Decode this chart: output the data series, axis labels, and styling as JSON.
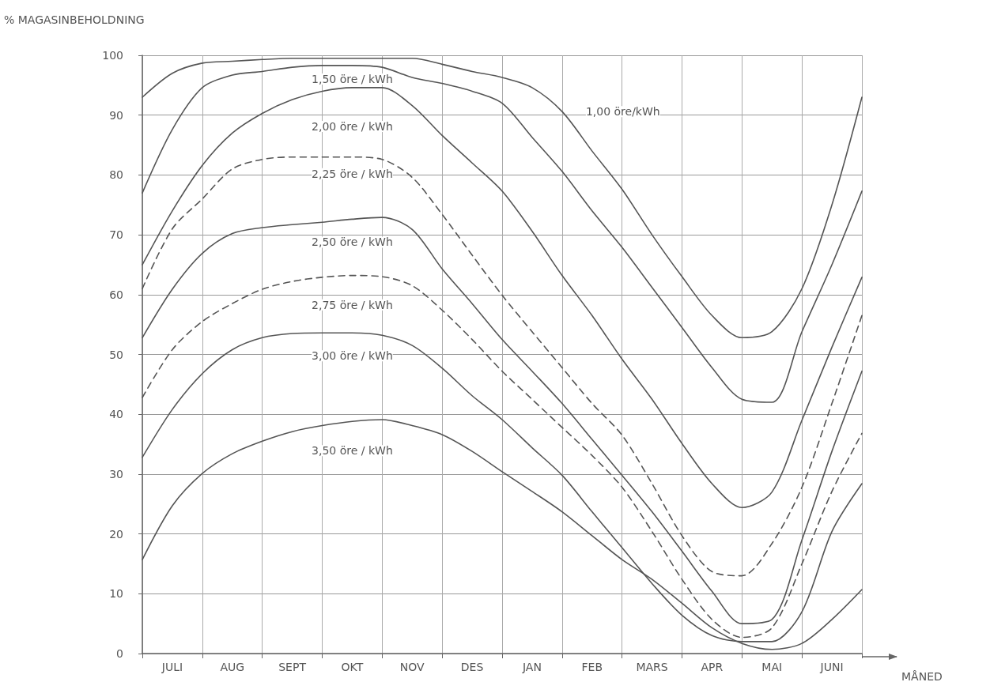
{
  "chart_data": {
    "type": "line",
    "ylabel": "% MAGASINBEHOLDNING",
    "xlabel": "MÅNED",
    "categories": [
      null,
      "JULI",
      null,
      "AUG",
      null,
      "SEPT",
      null,
      "OKT",
      null,
      "NOV",
      null,
      "DES",
      null,
      "JAN",
      null,
      "FEB",
      null,
      "MARS",
      null,
      "APR",
      null,
      "MAI",
      null,
      "JUNI",
      null
    ],
    "ylim": [
      0,
      100
    ],
    "yticks": [
      0,
      10,
      20,
      30,
      40,
      50,
      60,
      70,
      80,
      90,
      100
    ],
    "grid": true,
    "legend": false,
    "marker": "none",
    "series": [
      {
        "name": "1,00 öre/kWh",
        "color": "#555555",
        "line_style": "solid",
        "values": [
          93,
          97,
          98.7,
          99,
          99.3,
          99.5,
          99.5,
          99.5,
          99.5,
          99.5,
          98.5,
          97.3,
          96.3,
          94.6,
          90.6,
          84,
          77.6,
          70,
          63,
          56.5,
          52.8,
          53.8,
          61,
          75,
          93
        ]
      },
      {
        "name": "1,50 öre / kWh",
        "color": "#555555",
        "line_style": "solid",
        "values": [
          77,
          87.6,
          94.6,
          96.7,
          97.3,
          98,
          98.3,
          98.3,
          98,
          96.3,
          95.3,
          94,
          92,
          86.3,
          80.6,
          74,
          67.9,
          61.2,
          54.5,
          47.8,
          42.5,
          42,
          53.8,
          65,
          77.3
        ]
      },
      {
        "name": "2,00 öre / kWh",
        "color": "#555555",
        "line_style": "solid",
        "values": [
          65,
          74,
          81.6,
          87,
          90.3,
          92.6,
          94,
          94.6,
          94.6,
          91.6,
          86.6,
          82,
          77.3,
          70.6,
          63.2,
          56.5,
          49.2,
          42.5,
          35.1,
          28.4,
          24.4,
          27,
          39,
          51.2,
          62.9
        ]
      },
      {
        "name": "2,25 öre / kWh",
        "color": "#555555",
        "line_style": "dashed",
        "values": [
          61,
          71,
          76,
          81,
          82.6,
          83,
          83,
          83,
          82.6,
          79.6,
          73.4,
          66.6,
          59.9,
          53.8,
          47.8,
          41.8,
          36.5,
          28.4,
          19.7,
          13.7,
          13,
          18.4,
          27.8,
          41.8,
          56.5
        ]
      },
      {
        "name": "2,50 öre / kWh",
        "color": "#555555",
        "line_style": "solid",
        "values": [
          52.8,
          60.9,
          66.9,
          70.2,
          71.2,
          71.7,
          72.1,
          72.6,
          72.9,
          70.9,
          64.3,
          58.5,
          52.5,
          47.2,
          41.8,
          35.8,
          29.8,
          23.7,
          17.1,
          10.4,
          5,
          5.7,
          19,
          33.8,
          47.2
        ]
      },
      {
        "name": "2,75 öre / kWh",
        "color": "#555555",
        "line_style": "dashed",
        "values": [
          42.8,
          50.8,
          55.5,
          58.5,
          60.9,
          62.2,
          62.9,
          63.2,
          63,
          61.5,
          57.4,
          52.5,
          47.2,
          42.5,
          37.8,
          33.1,
          27.8,
          20.4,
          12.4,
          5.7,
          2.7,
          4.3,
          15,
          27.1,
          36.8
        ]
      },
      {
        "name": "3,00 öre / kWh",
        "color": "#555555",
        "line_style": "solid",
        "values": [
          32.8,
          40.8,
          46.8,
          50.8,
          52.8,
          53.5,
          53.6,
          53.6,
          53.2,
          51.5,
          47.7,
          43.1,
          39.1,
          34.4,
          29.8,
          23.7,
          17.7,
          11.7,
          6.4,
          3,
          2,
          2,
          7,
          20.4,
          28.4
        ]
      },
      {
        "name": "3,50 öre / kWh",
        "color": "#555555",
        "line_style": "solid",
        "values": [
          15.7,
          24.7,
          30.1,
          33.4,
          35.5,
          37.1,
          38.1,
          38.8,
          39.1,
          38.1,
          36.6,
          33.8,
          30.4,
          27.1,
          23.7,
          19.7,
          15.7,
          12.4,
          8.4,
          4.3,
          1.7,
          0.7,
          1.7,
          5.7,
          10.7
        ]
      }
    ]
  }
}
